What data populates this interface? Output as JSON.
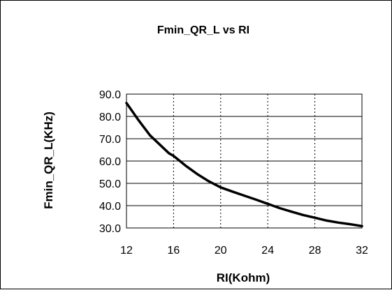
{
  "chart_data": {
    "type": "line",
    "title": "Fmin_QR_L vs RI",
    "xlabel": "RI(Kohm)",
    "ylabel": "Fmin_QR_L(KHz)",
    "xlim": [
      12,
      32
    ],
    "ylim": [
      30,
      90
    ],
    "xticks": [
      12,
      16,
      20,
      24,
      28,
      32
    ],
    "xtick_labels": [
      "12",
      "16",
      "20",
      "24",
      "28",
      "32"
    ],
    "yticks": [
      30,
      40,
      50,
      60,
      70,
      80,
      90
    ],
    "ytick_labels": [
      "30.0",
      "40.0",
      "50.0",
      "60.0",
      "70.0",
      "80.0",
      "90.0"
    ],
    "grid": true,
    "legend": "none",
    "line_color": "#000000",
    "series": [
      {
        "x": [
          12,
          13,
          14,
          15,
          15.6,
          16,
          17,
          18,
          19,
          20,
          21,
          22,
          23,
          24,
          25,
          26,
          27,
          28,
          29,
          30,
          31,
          32
        ],
        "y": [
          86,
          78.5,
          71.5,
          66.5,
          63.5,
          62.3,
          58,
          54.2,
          50.9,
          48.2,
          46.3,
          44.5,
          42.7,
          40.8,
          38.9,
          37.3,
          35.8,
          34.6,
          33.3,
          32.4,
          31.7,
          30.8
        ]
      }
    ]
  }
}
